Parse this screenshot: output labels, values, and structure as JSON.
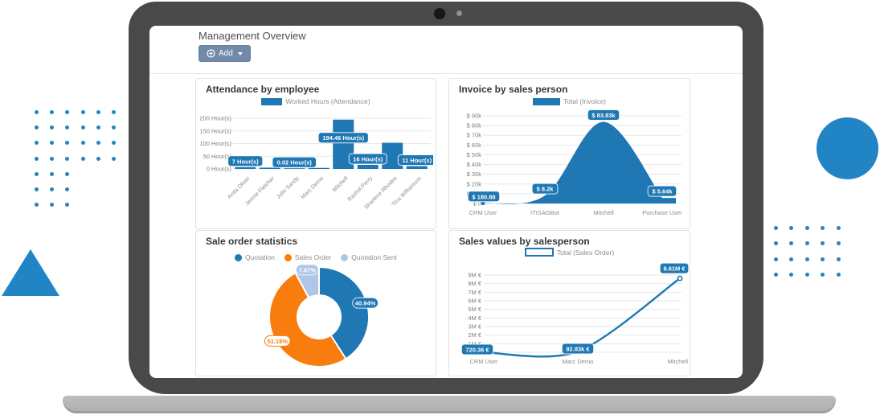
{
  "header": {
    "title": "Management Overview",
    "add_label": "Add"
  },
  "colors": {
    "chart_blue": "#1f77b4",
    "orange": "#f87d0e",
    "pale_blue": "#aec7e8",
    "decor_blue": "#2185c5",
    "add_button_bg": "#7289aa"
  },
  "chart_data": [
    {
      "id": "attendance",
      "type": "bar",
      "title": "Attendance by employee",
      "legend_label": "Worked Hours (Attendance)",
      "categories": [
        "Anita Oliver",
        "Jennie Fletcher",
        "Julio Sandy",
        "Marc Demo",
        "Mitchell",
        "Rachel Perry",
        "Sharlene Rhodes",
        "Tina Williamson"
      ],
      "values": [
        7,
        5,
        0.02,
        4,
        194.46,
        16,
        103,
        11
      ],
      "value_labels": [
        "7 Hour(s)",
        null,
        "0.02 Hour(s)",
        null,
        "194.46 Hour(s)",
        "16 Hour(s)",
        null,
        "11 Hour(s)"
      ],
      "y_ticks": [
        "200 Hour(s)",
        "150 Hour(s)",
        "100 Hour(s)",
        "50 Hour(s)",
        "0 Hour(s)"
      ],
      "ylim": [
        0,
        200
      ],
      "color": "#1f77b4"
    },
    {
      "id": "invoice",
      "type": "area",
      "title": "Invoice by sales person",
      "legend_label": "Total (Invoice)",
      "categories": [
        "CRM User",
        "ITISAGBot",
        "Mitchell",
        "Purchase User"
      ],
      "values": [
        180.88,
        8200,
        83830,
        5640
      ],
      "value_labels": [
        "$ 180.88",
        "$ 8.2k",
        "$ 83.83k",
        "$ 5.64k"
      ],
      "y_ticks": [
        "$ 90k",
        "$ 80k",
        "$ 70k",
        "$ 60k",
        "$ 50k",
        "$ 40k",
        "$ 30k",
        "$ 20k",
        "$ 10k",
        "$ 0"
      ],
      "ylim": [
        0,
        90000
      ],
      "color": "#1f77b4"
    },
    {
      "id": "sale-order-statistics",
      "type": "donut",
      "title": "Sale order statistics",
      "labels": [
        "Quotation",
        "Sales Order",
        "Quotation Sent"
      ],
      "values": [
        40.94,
        51.18,
        7.87
      ],
      "value_labels": [
        "40.94%",
        "51.18%",
        "7.87%"
      ],
      "colors": [
        "#1f77b4",
        "#f87d0e",
        "#aec7e8"
      ]
    },
    {
      "id": "sales-values",
      "type": "line",
      "title": "Sales values by salesperson",
      "legend_label": "Total (Sales Order)",
      "categories": [
        "CRM User",
        "Marc Demo",
        "Mitchell"
      ],
      "values": [
        720.36,
        92830,
        8610000
      ],
      "value_labels": [
        "720.36 €",
        "92.83k €",
        "8.61M €"
      ],
      "y_ticks": [
        "9M €",
        "8M €",
        "7M €",
        "6M €",
        "5M €",
        "4M €",
        "3M €",
        "2M €",
        "1M €",
        "0 €"
      ],
      "ylim": [
        0,
        9000000
      ],
      "color": "#1f77b4"
    }
  ]
}
